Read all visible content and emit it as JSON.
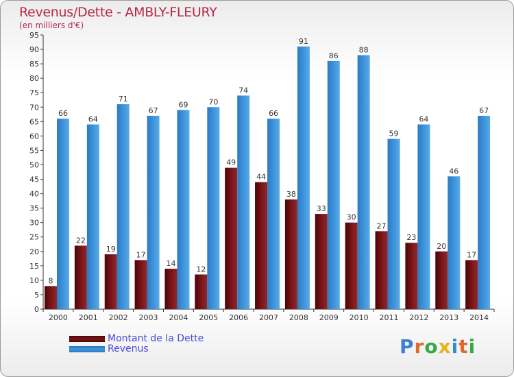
{
  "title": "Revenus/Dette - AMBLY-FLEURY",
  "subtitle": "(en milliers d'€)",
  "colors": {
    "dette": "#7a1416",
    "revenus": "#3f96dd",
    "title": "#b5284b",
    "legend_text": "#4b4bd8"
  },
  "legend": {
    "dette_label": "Montant de la Dette",
    "revenus_label": "Revenus"
  },
  "logo": {
    "text": "Proxiti"
  },
  "chart_data": {
    "type": "bar",
    "title": "Revenus/Dette - AMBLY-FLEURY",
    "subtitle": "(en milliers d'€)",
    "categories": [
      "2000",
      "2001",
      "2002",
      "2003",
      "2004",
      "2005",
      "2006",
      "2007",
      "2008",
      "2009",
      "2010",
      "2011",
      "2012",
      "2013",
      "2014"
    ],
    "series": [
      {
        "name": "Montant de la Dette",
        "color": "#7a1416",
        "values": [
          8,
          22,
          19,
          17,
          14,
          12,
          49,
          44,
          38,
          33,
          30,
          27,
          23,
          20,
          17
        ]
      },
      {
        "name": "Revenus",
        "color": "#3f96dd",
        "values": [
          66,
          64,
          71,
          67,
          69,
          70,
          74,
          66,
          91,
          86,
          88,
          59,
          64,
          46,
          67
        ]
      }
    ],
    "ylim": [
      0,
      95
    ],
    "yticks": [
      0,
      5,
      10,
      15,
      20,
      25,
      30,
      35,
      40,
      45,
      50,
      55,
      60,
      65,
      70,
      75,
      80,
      85,
      90,
      95
    ],
    "grid": false,
    "legend_position": "bottom-left"
  }
}
